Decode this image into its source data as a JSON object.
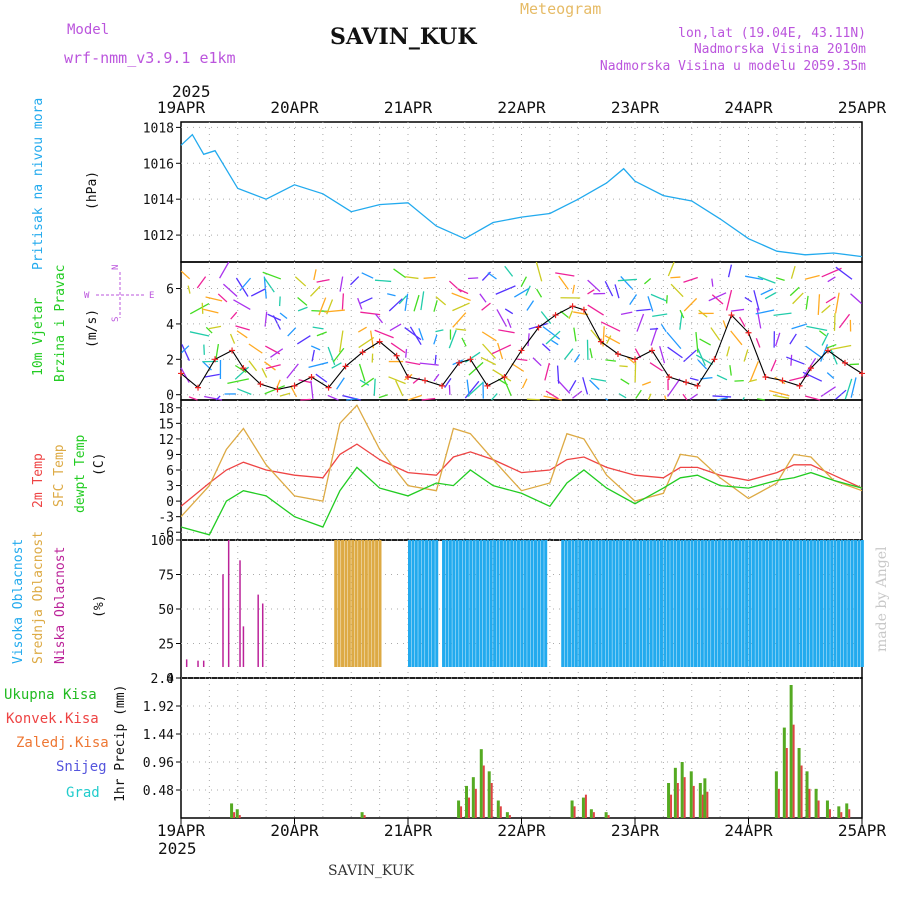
{
  "header": {
    "model_label": "Model",
    "model_name": "wrf-nmm_v3.9.1 e1km",
    "station": "SAVIN_KUK",
    "meteogram_label": "Meteogram",
    "coords": "lon,lat (19.04E, 43.11N)",
    "elevation": "Nadmorska Visina 2010m",
    "model_elevation": "Nadmorska Visina u modelu 2059.35m",
    "footer_station": "SAVIN_KUK",
    "credit": "made by Angel"
  },
  "colors": {
    "pressure": "#22aaee",
    "temp2m": "#ee4444",
    "sfc_temp": "#ddaa44",
    "dewpt": "#22cc22",
    "wind_line": "#000000",
    "wind_marker": "#ee2222",
    "cloud_high": "#22aaee",
    "cloud_mid": "#ddaa44",
    "cloud_low": "#bb2299",
    "precip_total": "#55aa22",
    "precip_conv": "#dd4444",
    "header_purple": "#bb55dd",
    "meteogram_gold": "#e6bb66"
  },
  "chart_data": [
    {
      "type": "line",
      "panel": "pressure",
      "ylabel_left": "Pritisak na nivou mora",
      "unit": "(hPa)",
      "ylim": [
        1010.5,
        1018.3
      ],
      "yticks": [
        "1012",
        "1014",
        "1016",
        "1018"
      ],
      "grid": true,
      "x_day_index": [
        0,
        0.1,
        0.2,
        0.3,
        0.5,
        0.75,
        1.0,
        1.25,
        1.5,
        1.75,
        2.0,
        2.25,
        2.5,
        2.75,
        3.0,
        3.25,
        3.5,
        3.75,
        3.9,
        4.0,
        4.25,
        4.5,
        4.75,
        5.0,
        5.25,
        5.5,
        5.75,
        6.0
      ],
      "series": [
        {
          "values": [
            1017.0,
            1017.6,
            1016.5,
            1016.7,
            1014.6,
            1014.0,
            1014.8,
            1014.3,
            1013.3,
            1013.7,
            1013.8,
            1012.5,
            1011.8,
            1012.7,
            1013.0,
            1013.2,
            1014.0,
            1014.9,
            1015.7,
            1015.0,
            1014.2,
            1013.9,
            1012.9,
            1011.8,
            1011.1,
            1010.9,
            1011.0,
            1010.8
          ]
        }
      ]
    },
    {
      "type": "line",
      "panel": "wind",
      "ylabel_left_1": "10m Vjetar",
      "ylabel_left_2": "Brzina i Pravac",
      "unit": "(m/s)",
      "compass": {
        "N": "N",
        "S": "S",
        "E": "E",
        "W": "W"
      },
      "ylim": [
        -0.3,
        7.5
      ],
      "yticks": [
        "0",
        "2",
        "4",
        "6"
      ],
      "grid": true,
      "x_day_index": [
        0,
        0.15,
        0.3,
        0.45,
        0.55,
        0.7,
        0.85,
        1.0,
        1.15,
        1.3,
        1.45,
        1.6,
        1.75,
        1.9,
        2.0,
        2.15,
        2.3,
        2.45,
        2.55,
        2.7,
        2.85,
        3.0,
        3.15,
        3.3,
        3.45,
        3.55,
        3.7,
        3.85,
        4.0,
        4.15,
        4.3,
        4.45,
        4.55,
        4.7,
        4.85,
        5.0,
        5.15,
        5.3,
        5.45,
        5.55,
        5.7,
        5.85,
        6.0
      ],
      "series": [
        {
          "values": [
            1.2,
            0.4,
            2.0,
            2.5,
            1.5,
            0.6,
            0.3,
            0.5,
            1.0,
            0.4,
            1.6,
            2.4,
            3.0,
            2.2,
            1.0,
            0.8,
            0.5,
            1.8,
            2.0,
            0.5,
            1.0,
            2.5,
            3.8,
            4.5,
            5.0,
            4.8,
            3.0,
            2.3,
            2.0,
            2.5,
            1.0,
            0.7,
            0.5,
            2.0,
            4.5,
            3.5,
            1.0,
            0.8,
            0.5,
            1.5,
            2.5,
            1.8,
            1.2
          ]
        }
      ]
    },
    {
      "type": "line",
      "panel": "temperature",
      "ylabel_left_1": "2m Temp",
      "ylabel_left_2": "SFC Temp",
      "ylabel_left_3": "dewpt Temp",
      "unit": "(C)",
      "ylim": [
        -7.5,
        19.5
      ],
      "yticks": [
        "-6",
        "-3",
        "0",
        "3",
        "6",
        "9",
        "12",
        "15",
        "18"
      ],
      "grid": true,
      "x_day_index": [
        0,
        0.25,
        0.4,
        0.55,
        0.75,
        1.0,
        1.25,
        1.4,
        1.55,
        1.75,
        2.0,
        2.25,
        2.4,
        2.55,
        2.75,
        3.0,
        3.25,
        3.4,
        3.55,
        3.75,
        4.0,
        4.25,
        4.4,
        4.55,
        4.75,
        5.0,
        5.25,
        5.4,
        5.55,
        5.75,
        6.0
      ],
      "series": [
        {
          "name": "2m Temp",
          "values": [
            -1.0,
            3.5,
            6.0,
            7.5,
            6.0,
            5.0,
            4.5,
            9.0,
            11.0,
            8.0,
            5.5,
            5.0,
            8.5,
            9.5,
            8.0,
            5.5,
            6.0,
            8.0,
            8.5,
            6.5,
            5.0,
            4.5,
            6.5,
            6.5,
            5.0,
            4.0,
            5.5,
            7.0,
            7.0,
            5.0,
            2.5
          ]
        },
        {
          "name": "SFC Temp",
          "values": [
            -3.0,
            3.0,
            10.0,
            14.0,
            7.0,
            1.0,
            0.0,
            15.0,
            18.5,
            10.0,
            3.0,
            2.0,
            14.0,
            13.0,
            8.0,
            2.0,
            3.5,
            13.0,
            12.0,
            5.0,
            0.0,
            1.5,
            9.0,
            8.5,
            4.5,
            0.5,
            3.5,
            9.0,
            8.5,
            4.0,
            2.0
          ]
        },
        {
          "name": "dewpt Temp",
          "values": [
            -5.0,
            -6.5,
            0.0,
            2.0,
            1.0,
            -3.0,
            -5.0,
            2.0,
            6.5,
            2.5,
            1.0,
            3.5,
            3.0,
            6.0,
            3.0,
            1.5,
            -1.0,
            3.5,
            6.0,
            2.5,
            -0.5,
            2.5,
            4.5,
            5.0,
            3.0,
            2.5,
            4.0,
            4.5,
            5.5,
            4.0,
            2.5
          ]
        }
      ]
    },
    {
      "type": "bar",
      "panel": "clouds",
      "ylabel_left_1": "Visoka Oblacnost",
      "ylabel_left_2": "Srednja Oblacnost",
      "ylabel_left_3": "Niska Oblacnost",
      "unit": "(%)",
      "ylim": [
        0,
        100
      ],
      "yticks": [
        "0",
        "25",
        "50",
        "75",
        "100"
      ],
      "grid": true,
      "high_cloud_spans_days": [
        [
          1.35,
          1.75
        ],
        [
          2.0,
          2.25
        ],
        [
          2.3,
          3.2
        ],
        [
          3.35,
          6.0
        ]
      ],
      "low_cloud_spikes": [
        {
          "x": 0.05,
          "v": 6
        },
        {
          "x": 0.15,
          "v": 5
        },
        {
          "x": 0.2,
          "v": 5
        },
        {
          "x": 0.37,
          "v": 73
        },
        {
          "x": 0.42,
          "v": 100
        },
        {
          "x": 0.52,
          "v": 84
        },
        {
          "x": 0.55,
          "v": 32
        },
        {
          "x": 0.68,
          "v": 57
        },
        {
          "x": 0.72,
          "v": 50
        }
      ]
    },
    {
      "type": "bar",
      "panel": "precipitation",
      "legend": [
        "Ukupna Kisa",
        "Konvek.Kisa",
        "Zaledj.Kisa",
        "Snijeg",
        "Grad"
      ],
      "legend_colors": [
        "#22bb22",
        "#ee4444",
        "#ee7733",
        "#5555dd",
        "#22cccc"
      ],
      "ylabel": "1hr Precip (mm)",
      "ylim": [
        0,
        2.4
      ],
      "yticks": [
        "0.48",
        "0.96",
        "1.44",
        "1.92",
        "2.4"
      ],
      "grid": true,
      "bars": [
        {
          "x": 0.45,
          "total": 0.25,
          "conv": 0.1
        },
        {
          "x": 0.5,
          "total": 0.15,
          "conv": 0.05
        },
        {
          "x": 1.6,
          "total": 0.1,
          "conv": 0.05
        },
        {
          "x": 2.45,
          "total": 0.3,
          "conv": 0.2
        },
        {
          "x": 2.52,
          "total": 0.55,
          "conv": 0.35
        },
        {
          "x": 2.58,
          "total": 0.7,
          "conv": 0.5
        },
        {
          "x": 2.65,
          "total": 1.18,
          "conv": 0.9
        },
        {
          "x": 2.72,
          "total": 0.8,
          "conv": 0.6
        },
        {
          "x": 2.8,
          "total": 0.3,
          "conv": 0.2
        },
        {
          "x": 2.88,
          "total": 0.1,
          "conv": 0.05
        },
        {
          "x": 3.45,
          "total": 0.3,
          "conv": 0.2
        },
        {
          "x": 3.55,
          "total": 0.35,
          "conv": 0.4
        },
        {
          "x": 3.62,
          "total": 0.15,
          "conv": 0.1
        },
        {
          "x": 3.75,
          "total": 0.1,
          "conv": 0.05
        },
        {
          "x": 4.3,
          "total": 0.6,
          "conv": 0.4
        },
        {
          "x": 4.36,
          "total": 0.86,
          "conv": 0.6
        },
        {
          "x": 4.42,
          "total": 0.96,
          "conv": 0.7
        },
        {
          "x": 4.5,
          "total": 0.8,
          "conv": 0.55
        },
        {
          "x": 4.58,
          "total": 0.6,
          "conv": 0.4
        },
        {
          "x": 4.62,
          "total": 0.68,
          "conv": 0.45
        },
        {
          "x": 5.25,
          "total": 0.8,
          "conv": 0.5
        },
        {
          "x": 5.32,
          "total": 1.55,
          "conv": 1.2
        },
        {
          "x": 5.38,
          "total": 2.28,
          "conv": 1.6
        },
        {
          "x": 5.45,
          "total": 1.2,
          "conv": 0.9
        },
        {
          "x": 5.52,
          "total": 0.8,
          "conv": 0.5
        },
        {
          "x": 5.6,
          "total": 0.5,
          "conv": 0.3
        },
        {
          "x": 5.7,
          "total": 0.3,
          "conv": 0.15
        },
        {
          "x": 5.8,
          "total": 0.2,
          "conv": 0.1
        },
        {
          "x": 5.87,
          "total": 0.25,
          "conv": 0.15
        }
      ]
    }
  ],
  "x_axis": {
    "year_top": "2025",
    "year_bottom": "2025",
    "days": [
      "19APR",
      "20APR",
      "21APR",
      "22APR",
      "23APR",
      "24APR",
      "25APR"
    ]
  }
}
